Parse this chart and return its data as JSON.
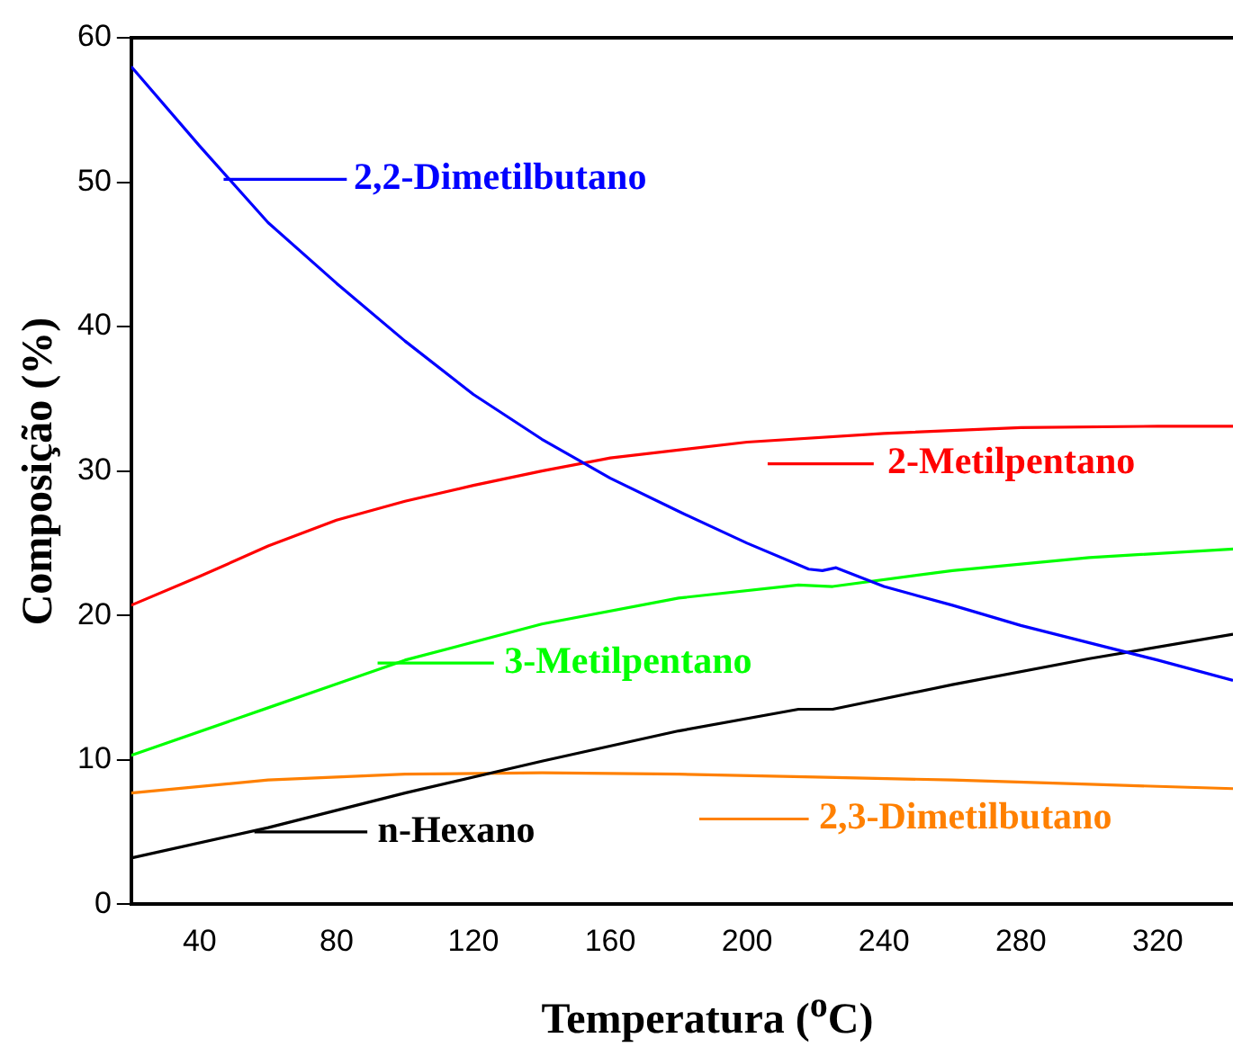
{
  "chart_data": {
    "type": "line",
    "xlabel": "Temperatura ($^{o}$C)",
    "ylabel": "Composição (%)",
    "xlim": [
      20,
      342
    ],
    "ylim": [
      0,
      60
    ],
    "xticks": [
      40,
      80,
      120,
      160,
      200,
      240,
      280,
      320
    ],
    "yticks": [
      0,
      10,
      20,
      30,
      40,
      50,
      60
    ],
    "grid": false,
    "legend": "right",
    "marker": "none",
    "line_style": "solid",
    "series": [
      {
        "name": "2,2-Dimetilbutano",
        "color": "#0000ff",
        "x": [
          20,
          40,
          60,
          80,
          100,
          120,
          140,
          160,
          180,
          200,
          218,
          222,
          226,
          240,
          260,
          280,
          300,
          320,
          342
        ],
        "values": [
          58,
          52.5,
          47.2,
          43,
          39,
          35.3,
          32.2,
          29.5,
          27.2,
          25,
          23.2,
          23.1,
          23.3,
          22,
          20.7,
          19.3,
          18.1,
          16.9,
          15.5
        ]
      },
      {
        "name": "2-Metilpentano",
        "color": "#ff0000",
        "x": [
          20,
          40,
          60,
          80,
          100,
          120,
          140,
          160,
          200,
          240,
          280,
          320,
          342
        ],
        "values": [
          20.7,
          22.7,
          24.8,
          26.6,
          27.9,
          29,
          30,
          30.9,
          32,
          32.6,
          33,
          33.1,
          33.1
        ]
      },
      {
        "name": "3-Metilpentano",
        "color": "#00ff00",
        "x": [
          20,
          60,
          100,
          140,
          180,
          215,
          225,
          260,
          300,
          342
        ],
        "values": [
          10.3,
          13.6,
          16.9,
          19.4,
          21.2,
          22.1,
          22,
          23.1,
          24,
          24.6
        ]
      },
      {
        "name": "n-Hexano",
        "color": "#000000",
        "x": [
          20,
          60,
          100,
          140,
          180,
          215,
          225,
          260,
          300,
          342
        ],
        "values": [
          3.2,
          5.3,
          7.7,
          9.9,
          12,
          13.5,
          13.5,
          15.2,
          17,
          18.7
        ]
      },
      {
        "name": "2,3-Dimetilbutano",
        "color": "#ff8000",
        "x": [
          20,
          60,
          100,
          140,
          180,
          220,
          260,
          300,
          342
        ],
        "values": [
          7.7,
          8.6,
          9,
          9.1,
          9,
          8.8,
          8.6,
          8.3,
          8
        ]
      }
    ]
  }
}
